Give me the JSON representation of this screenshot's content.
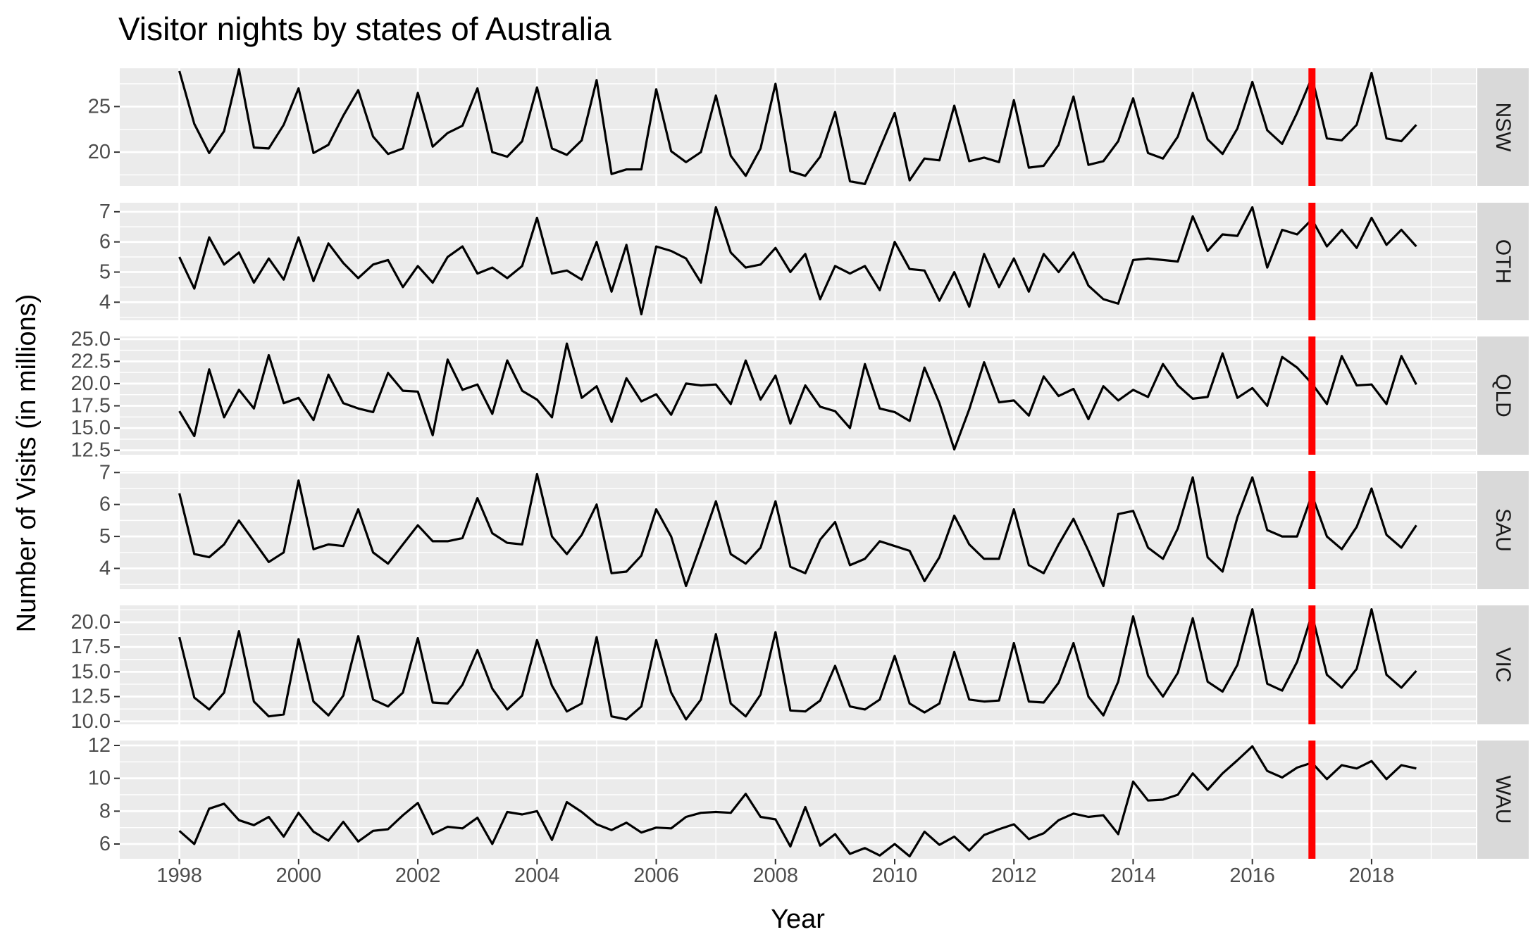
{
  "chart_data": {
    "type": "line",
    "title": "Visitor nights by states of Australia",
    "xlabel": "Year",
    "ylabel": "Number of Visits (in millions)",
    "x_ticks": [
      1998,
      2000,
      2002,
      2004,
      2006,
      2008,
      2010,
      2012,
      2014,
      2016,
      2018
    ],
    "xlim": [
      1997.0,
      2019.75
    ],
    "x_start": 1998.0,
    "x_step": 0.25,
    "vline_x": 2017.0,
    "colors": {
      "line": "#000000",
      "vline": "#ff0000",
      "panel_bg": "#ebebeb",
      "grid": "#ffffff",
      "strip_bg": "#d9d9d9",
      "strip_text": "#1a1a1a",
      "axis_text": "#4d4d4d",
      "title_text": "#000000"
    },
    "grid": true,
    "facets": [
      {
        "name": "NSW",
        "ylim": [
          16.3,
          29.2
        ],
        "y_ticks": [
          20,
          25
        ],
        "y_tick_labels": [
          "20",
          "25"
        ],
        "values": [
          28.9,
          23.1,
          19.9,
          22.3,
          29.1,
          20.5,
          20.4,
          23.0,
          27.0,
          19.9,
          20.8,
          24.0,
          26.8,
          21.7,
          19.8,
          20.4,
          26.5,
          20.6,
          22.1,
          22.9,
          27.0,
          20.0,
          19.5,
          21.2,
          27.1,
          20.4,
          19.7,
          21.3,
          27.9,
          17.6,
          18.1,
          18.1,
          26.9,
          20.1,
          18.9,
          20.0,
          26.2,
          19.6,
          17.4,
          20.4,
          27.5,
          17.9,
          17.4,
          19.5,
          24.4,
          16.8,
          16.5,
          20.4,
          24.3,
          16.9,
          19.3,
          19.1,
          25.1,
          19.0,
          19.4,
          18.9,
          25.7,
          18.3,
          18.5,
          20.8,
          26.1,
          18.6,
          19.0,
          21.2,
          25.9,
          19.9,
          19.3,
          21.7,
          26.5,
          21.4,
          19.8,
          22.6,
          27.7,
          22.4,
          20.9,
          24.3,
          28.2,
          21.5,
          21.3,
          23.0,
          28.7,
          21.5,
          21.2,
          23.0
        ]
      },
      {
        "name": "OTH",
        "ylim": [
          3.4,
          7.3
        ],
        "y_ticks": [
          4,
          5,
          6,
          7
        ],
        "y_tick_labels": [
          "4",
          "5",
          "6",
          "7"
        ],
        "values": [
          5.5,
          4.45,
          6.15,
          5.25,
          5.65,
          4.65,
          5.45,
          4.75,
          6.15,
          4.7,
          5.95,
          5.3,
          4.8,
          5.25,
          5.4,
          4.5,
          5.2,
          4.65,
          5.5,
          5.85,
          4.95,
          5.15,
          4.8,
          5.2,
          6.8,
          4.95,
          5.05,
          4.75,
          6.0,
          4.35,
          5.9,
          3.6,
          5.85,
          5.7,
          5.45,
          4.65,
          7.15,
          5.65,
          5.15,
          5.25,
          5.8,
          5.0,
          5.6,
          4.1,
          5.2,
          4.95,
          5.2,
          4.4,
          6.0,
          5.1,
          5.05,
          4.05,
          5.0,
          3.85,
          5.6,
          4.5,
          5.45,
          4.35,
          5.6,
          5.0,
          5.65,
          4.55,
          4.1,
          3.95,
          5.4,
          5.45,
          5.4,
          5.35,
          6.85,
          5.7,
          6.25,
          6.2,
          7.15,
          5.15,
          6.4,
          6.25,
          6.75,
          5.85,
          6.4,
          5.8,
          6.8,
          5.9,
          6.4,
          5.85
        ]
      },
      {
        "name": "QLD",
        "ylim": [
          12.0,
          25.3
        ],
        "y_ticks": [
          12.5,
          15.0,
          17.5,
          20.0,
          22.5,
          25.0
        ],
        "y_tick_labels": [
          "12.5",
          "15.0",
          "17.5",
          "20.0",
          "22.5",
          "25.0"
        ],
        "values": [
          16.9,
          14.1,
          21.6,
          16.2,
          19.3,
          17.2,
          23.2,
          17.8,
          18.4,
          15.9,
          21.0,
          17.8,
          17.2,
          16.8,
          21.2,
          19.2,
          19.1,
          14.2,
          22.7,
          19.3,
          19.9,
          16.6,
          22.6,
          19.2,
          18.2,
          16.2,
          24.5,
          18.4,
          19.7,
          15.7,
          20.6,
          18.0,
          18.8,
          16.5,
          20.0,
          19.8,
          19.9,
          17.7,
          22.6,
          18.2,
          20.9,
          15.5,
          19.8,
          17.4,
          16.9,
          15.0,
          22.2,
          17.2,
          16.8,
          15.8,
          21.8,
          17.8,
          12.6,
          17.1,
          22.4,
          17.9,
          18.1,
          16.4,
          20.8,
          18.6,
          19.4,
          16.0,
          19.7,
          18.1,
          19.3,
          18.5,
          22.2,
          19.8,
          18.3,
          18.5,
          23.4,
          18.4,
          19.5,
          17.5,
          23.0,
          21.8,
          20.0,
          17.7,
          23.1,
          19.8,
          19.9,
          17.7,
          23.1,
          19.9
        ]
      },
      {
        "name": "SAU",
        "ylim": [
          3.35,
          7.05
        ],
        "y_ticks": [
          4,
          5,
          6,
          7
        ],
        "y_tick_labels": [
          "4",
          "5",
          "6",
          "7"
        ],
        "values": [
          6.35,
          4.45,
          4.35,
          4.75,
          5.5,
          4.85,
          4.2,
          4.5,
          6.75,
          4.6,
          4.75,
          4.7,
          5.85,
          4.5,
          4.15,
          4.75,
          5.35,
          4.85,
          4.85,
          4.95,
          6.2,
          5.1,
          4.8,
          4.75,
          6.95,
          5.0,
          4.45,
          5.05,
          6.0,
          3.85,
          3.9,
          4.4,
          5.85,
          5.0,
          3.45,
          4.75,
          6.1,
          4.45,
          4.15,
          4.65,
          6.1,
          4.05,
          3.85,
          4.9,
          5.45,
          4.1,
          4.3,
          4.85,
          4.7,
          4.55,
          3.6,
          4.35,
          5.65,
          4.75,
          4.3,
          4.3,
          5.85,
          4.1,
          3.85,
          4.75,
          5.55,
          4.55,
          3.45,
          5.7,
          5.8,
          4.65,
          4.3,
          5.25,
          6.85,
          4.35,
          3.9,
          5.6,
          6.85,
          5.2,
          5.0,
          5.0,
          6.3,
          5.0,
          4.6,
          5.3,
          6.5,
          5.05,
          4.65,
          5.35
        ]
      },
      {
        "name": "VIC",
        "ylim": [
          9.7,
          21.7
        ],
        "y_ticks": [
          10.0,
          12.5,
          15.0,
          17.5,
          20.0
        ],
        "y_tick_labels": [
          "10.0",
          "12.5",
          "15.0",
          "17.5",
          "20.0"
        ],
        "values": [
          18.5,
          12.4,
          11.2,
          12.9,
          19.1,
          12.0,
          10.5,
          10.7,
          18.3,
          12.0,
          10.6,
          12.6,
          18.6,
          12.2,
          11.5,
          12.9,
          18.4,
          11.9,
          11.8,
          13.7,
          17.2,
          13.3,
          11.2,
          12.6,
          18.2,
          13.6,
          11.0,
          11.8,
          18.5,
          10.5,
          10.2,
          11.5,
          18.2,
          12.9,
          10.2,
          12.2,
          18.8,
          11.8,
          10.5,
          12.7,
          19.0,
          11.1,
          11.0,
          12.1,
          15.6,
          11.5,
          11.2,
          12.2,
          16.6,
          11.8,
          10.9,
          11.8,
          17.0,
          12.2,
          12.0,
          12.1,
          17.9,
          12.0,
          11.9,
          13.9,
          17.9,
          12.5,
          10.6,
          14.0,
          20.6,
          14.6,
          12.5,
          14.9,
          20.4,
          14.0,
          13.0,
          15.7,
          21.3,
          13.8,
          13.1,
          16.0,
          20.8,
          14.7,
          13.4,
          15.3,
          21.3,
          14.7,
          13.4,
          15.1
        ]
      },
      {
        "name": "WAU",
        "ylim": [
          5.1,
          12.3
        ],
        "y_ticks": [
          6,
          8,
          10,
          12
        ],
        "y_tick_labels": [
          "6",
          "8",
          "10",
          "12"
        ],
        "values": [
          6.8,
          6.0,
          8.15,
          8.45,
          7.45,
          7.15,
          7.65,
          6.45,
          7.9,
          6.75,
          6.2,
          7.35,
          6.15,
          6.8,
          6.9,
          7.75,
          8.5,
          6.6,
          7.05,
          6.95,
          7.6,
          6.0,
          7.95,
          7.8,
          8.0,
          6.25,
          8.55,
          7.95,
          7.2,
          6.85,
          7.3,
          6.7,
          7.0,
          6.95,
          7.65,
          7.9,
          7.95,
          7.9,
          9.05,
          7.65,
          7.5,
          5.85,
          8.25,
          5.9,
          6.6,
          5.4,
          5.75,
          5.3,
          6.0,
          5.25,
          6.75,
          5.95,
          6.45,
          5.6,
          6.55,
          6.9,
          7.2,
          6.3,
          6.65,
          7.45,
          7.85,
          7.65,
          7.75,
          6.6,
          9.8,
          8.65,
          8.7,
          9.0,
          10.3,
          9.3,
          10.3,
          11.1,
          11.95,
          10.45,
          10.05,
          10.65,
          10.95,
          9.95,
          10.8,
          10.6,
          11.05,
          9.95,
          10.8,
          10.6
        ]
      }
    ]
  }
}
